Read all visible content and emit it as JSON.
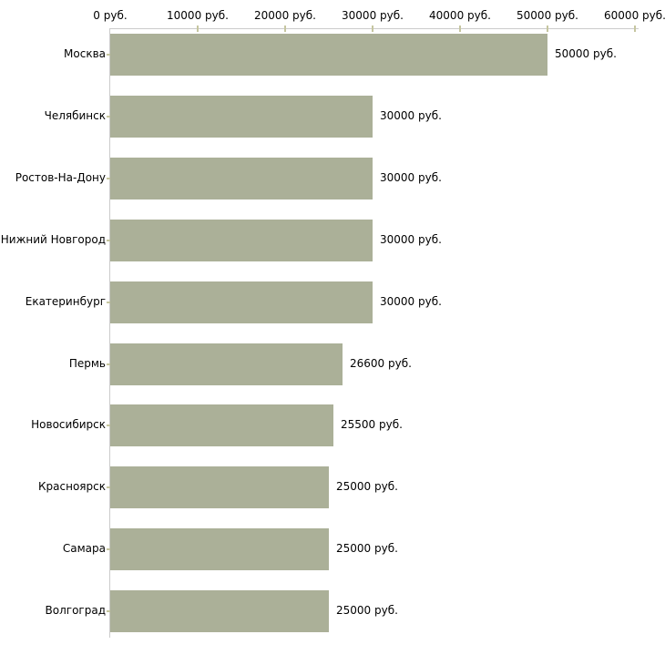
{
  "chart_data": {
    "type": "bar",
    "orientation": "horizontal",
    "title": "",
    "xlabel": "",
    "ylabel": "",
    "categories": [
      "Москва",
      "Челябинск",
      "Ростов-На-Дону",
      "Нижний Новгород",
      "Екатеринбург",
      "Пермь",
      "Новосибирск",
      "Красноярск",
      "Самара",
      "Волгоград"
    ],
    "values": [
      50000,
      30000,
      30000,
      30000,
      30000,
      26600,
      25500,
      25000,
      25000,
      25000
    ],
    "value_labels": [
      "50000 руб.",
      "30000 руб.",
      "30000 руб.",
      "30000 руб.",
      "30000 руб.",
      "26600 руб.",
      "25500 руб.",
      "25000 руб.",
      "25000 руб.",
      "25000 руб."
    ],
    "x_axis": {
      "position": "top",
      "min": 0,
      "max": 60000,
      "ticks": [
        0,
        10000,
        20000,
        30000,
        40000,
        50000,
        60000
      ],
      "tick_labels": [
        "0 руб.",
        "10000 руб.",
        "20000 руб.",
        "30000 руб.",
        "40000 руб.",
        "50000 руб.",
        "60000 руб."
      ]
    },
    "legend": null,
    "grid": false,
    "colors": {
      "bar_fill": "#abb098",
      "axis_line": "#cbcbcb",
      "tick_mark": "#c6c6a0",
      "text": "#000000",
      "background": "#ffffff"
    }
  }
}
